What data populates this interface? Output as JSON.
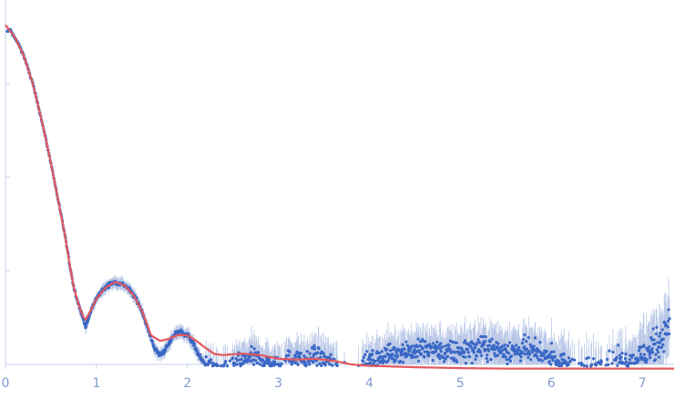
{
  "chart_data": {
    "type": "scatter",
    "title": "",
    "xlabel": "",
    "ylabel": "",
    "xlim": [
      0,
      7.35
    ],
    "ylim": [
      0,
      7.2
    ],
    "x_ticks": [
      "0",
      "1",
      "2",
      "3",
      "4",
      "5",
      "6",
      "7"
    ],
    "y_ticks": [
      2,
      4,
      6
    ],
    "grid": false,
    "legend": "none",
    "colors": {
      "data": "#3a67c6",
      "error": "#b9c7e6",
      "fit": "#e3585d",
      "axis": "#c6d1ea",
      "ticks": "#7f9bd1"
    },
    "series": [
      {
        "kind": "fit-curve",
        "x": [
          0.0,
          0.1,
          0.2,
          0.3,
          0.4,
          0.5,
          0.6,
          0.65,
          0.7,
          0.75,
          0.8,
          0.85,
          0.88,
          0.95,
          1.0,
          1.1,
          1.2,
          1.3,
          1.4,
          1.5,
          1.6,
          1.7,
          1.8,
          1.9,
          2.0,
          2.1,
          2.2,
          2.3,
          2.4,
          2.6,
          2.8,
          3.0,
          3.2,
          3.4,
          3.6,
          3.8,
          4.0,
          4.5,
          5.0,
          5.5,
          6.0,
          6.5,
          7.0,
          7.35
        ],
        "y": [
          7.25,
          7.0,
          6.6,
          6.0,
          5.2,
          4.3,
          3.3,
          2.8,
          2.2,
          1.65,
          1.3,
          1.04,
          0.95,
          1.2,
          1.4,
          1.64,
          1.76,
          1.7,
          1.5,
          1.15,
          0.62,
          0.5,
          0.55,
          0.63,
          0.62,
          0.5,
          0.35,
          0.22,
          0.2,
          0.23,
          0.2,
          0.12,
          0.1,
          0.12,
          0.08,
          0.0,
          -0.03,
          -0.06,
          -0.08,
          -0.09,
          -0.09,
          -0.09,
          -0.09,
          -0.09
        ]
      },
      {
        "kind": "measured",
        "x": [
          0.02,
          0.05,
          0.1,
          0.15,
          0.2,
          0.25,
          0.3,
          0.35,
          0.4,
          0.45,
          0.5,
          0.55,
          0.6,
          0.65,
          0.7,
          0.75,
          0.8,
          0.85,
          0.88,
          0.9,
          0.95,
          1.0,
          1.05,
          1.1,
          1.15,
          1.2,
          1.25,
          1.3,
          1.35,
          1.4,
          1.45,
          1.5,
          1.55,
          1.6,
          1.65,
          1.7,
          1.75,
          1.8,
          1.85,
          1.9,
          1.95,
          2.0,
          2.05,
          2.1,
          2.15,
          2.2,
          2.3,
          2.4,
          2.5,
          2.6,
          2.7,
          2.8,
          2.9,
          3.0,
          3.1,
          3.2,
          3.3,
          3.4,
          3.5,
          3.6,
          3.7,
          3.8,
          3.9,
          4.0,
          4.1,
          4.2,
          4.3,
          4.4,
          4.5,
          4.6,
          4.7,
          4.8,
          4.9,
          5.0,
          5.1,
          5.2,
          5.3,
          5.4,
          5.5,
          5.6,
          5.7,
          5.8,
          5.9,
          6.0,
          6.1,
          6.2,
          6.3,
          6.4,
          6.5,
          6.6,
          6.7,
          6.8,
          6.9,
          7.0,
          7.1,
          7.2,
          7.3
        ],
        "y": [
          7.1,
          7.15,
          6.98,
          6.82,
          6.6,
          6.3,
          6.0,
          5.6,
          5.2,
          4.75,
          4.3,
          3.8,
          3.3,
          2.8,
          2.2,
          1.65,
          1.3,
          1.0,
          0.82,
          0.9,
          1.2,
          1.4,
          1.55,
          1.64,
          1.72,
          1.75,
          1.74,
          1.7,
          1.62,
          1.5,
          1.35,
          1.15,
          0.85,
          0.55,
          0.3,
          0.2,
          0.3,
          0.45,
          0.62,
          0.7,
          0.68,
          0.62,
          0.5,
          0.3,
          0.1,
          0.0,
          -0.1,
          -0.15,
          -0.05,
          0.05,
          0.15,
          0.1,
          0.0,
          -0.05,
          0.1,
          0.15,
          0.05,
          0.2,
          0.1,
          0.0,
          -0.15,
          -0.2,
          -0.1,
          0.05,
          0.12,
          0.2,
          0.25,
          0.3,
          0.28,
          0.3,
          0.32,
          0.25,
          0.22,
          0.3,
          0.32,
          0.34,
          0.36,
          0.32,
          0.3,
          0.28,
          0.3,
          0.25,
          0.2,
          0.15,
          0.05,
          -0.05,
          -0.1,
          -0.15,
          -0.1,
          -0.05,
          0.0,
          0.05,
          0.1,
          0.2,
          0.3,
          0.55,
          0.9
        ]
      }
    ]
  }
}
